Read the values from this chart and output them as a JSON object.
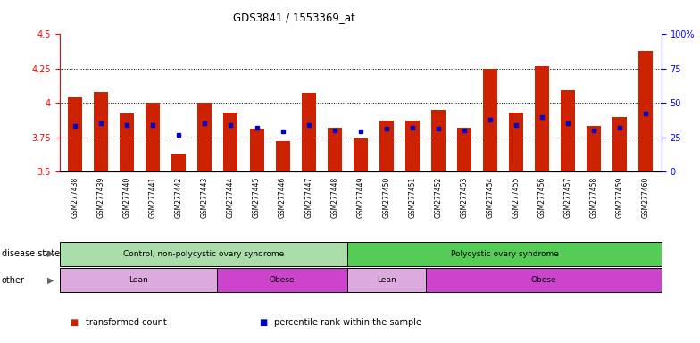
{
  "title": "GDS3841 / 1553369_at",
  "samples": [
    "GSM277438",
    "GSM277439",
    "GSM277440",
    "GSM277441",
    "GSM277442",
    "GSM277443",
    "GSM277444",
    "GSM277445",
    "GSM277446",
    "GSM277447",
    "GSM277448",
    "GSM277449",
    "GSM277450",
    "GSM277451",
    "GSM277452",
    "GSM277453",
    "GSM277454",
    "GSM277455",
    "GSM277456",
    "GSM277457",
    "GSM277458",
    "GSM277459",
    "GSM277460"
  ],
  "transformed_count": [
    4.04,
    4.08,
    3.92,
    4.0,
    3.63,
    4.0,
    3.93,
    3.81,
    3.72,
    4.07,
    3.82,
    3.74,
    3.87,
    3.87,
    3.95,
    3.82,
    4.25,
    3.93,
    4.27,
    4.09,
    3.83,
    3.9,
    4.38
  ],
  "percentile_rank": [
    33,
    35,
    34,
    34,
    27,
    35,
    34,
    32,
    29,
    34,
    30,
    29,
    31,
    32,
    31,
    30,
    38,
    34,
    40,
    35,
    30,
    32,
    42
  ],
  "ylim_left": [
    3.5,
    4.5
  ],
  "ylim_right": [
    0,
    100
  ],
  "yticks_left": [
    3.5,
    3.75,
    4.0,
    4.25,
    4.5
  ],
  "ytick_labels_left": [
    "3.5",
    "3.75",
    "4",
    "4.25",
    "4.5"
  ],
  "yticks_right": [
    0,
    25,
    50,
    75,
    100
  ],
  "ytick_labels_right": [
    "0",
    "25",
    "50",
    "75",
    "100%"
  ],
  "bar_color": "#cc2200",
  "percentile_color": "#0000cc",
  "bar_width": 0.55,
  "disease_state_groups": [
    {
      "label": "Control, non-polycystic ovary syndrome",
      "start": 0,
      "end": 11,
      "color": "#aaddaa"
    },
    {
      "label": "Polycystic ovary syndrome",
      "start": 11,
      "end": 23,
      "color": "#55cc55"
    }
  ],
  "other_groups": [
    {
      "label": "Lean",
      "start": 0,
      "end": 6,
      "color": "#ddaadd"
    },
    {
      "label": "Obese",
      "start": 6,
      "end": 11,
      "color": "#cc44cc"
    },
    {
      "label": "Lean",
      "start": 11,
      "end": 14,
      "color": "#ddaadd"
    },
    {
      "label": "Obese",
      "start": 14,
      "end": 23,
      "color": "#cc44cc"
    }
  ],
  "disease_state_label": "disease state",
  "other_label": "other",
  "legend_items": [
    {
      "label": "transformed count",
      "color": "#cc2200"
    },
    {
      "label": "percentile rank within the sample",
      "color": "#0000cc"
    }
  ],
  "tick_bg_color": "#d8d8d8",
  "plot_bg_color": "#ffffff"
}
